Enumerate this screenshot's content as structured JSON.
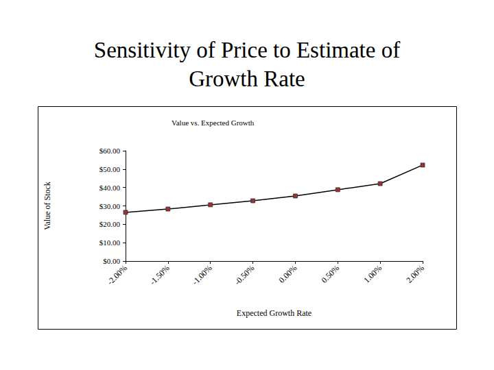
{
  "chart_data": {
    "type": "line",
    "title": "Sensitivity of Price to Estimate of Growth Rate",
    "subtitle": "Value vs. Expected Growth",
    "x_label": "Expected Growth Rate",
    "y_label": "Value of Stock",
    "categories": [
      "-2.00%",
      "-1.50%",
      "-1.00%",
      "-0.50%",
      "0.00%",
      "0.50%",
      "1.00%",
      "2.00%"
    ],
    "values": [
      26.5,
      28.3,
      30.6,
      32.8,
      35.4,
      38.8,
      42.1,
      52.2
    ],
    "ylim": [
      0,
      60
    ],
    "yticks": [
      {
        "value": 0,
        "label": "$0.00"
      },
      {
        "value": 10,
        "label": "$10.00"
      },
      {
        "value": 20,
        "label": "$20.00"
      },
      {
        "value": 30,
        "label": "$30.00"
      },
      {
        "value": 40,
        "label": "$40.00"
      },
      {
        "value": 50,
        "label": "$50.00"
      },
      {
        "value": 60,
        "label": "$60.00"
      }
    ],
    "grid": false,
    "color": "#000000",
    "marker": "square",
    "line_style": "solid"
  }
}
